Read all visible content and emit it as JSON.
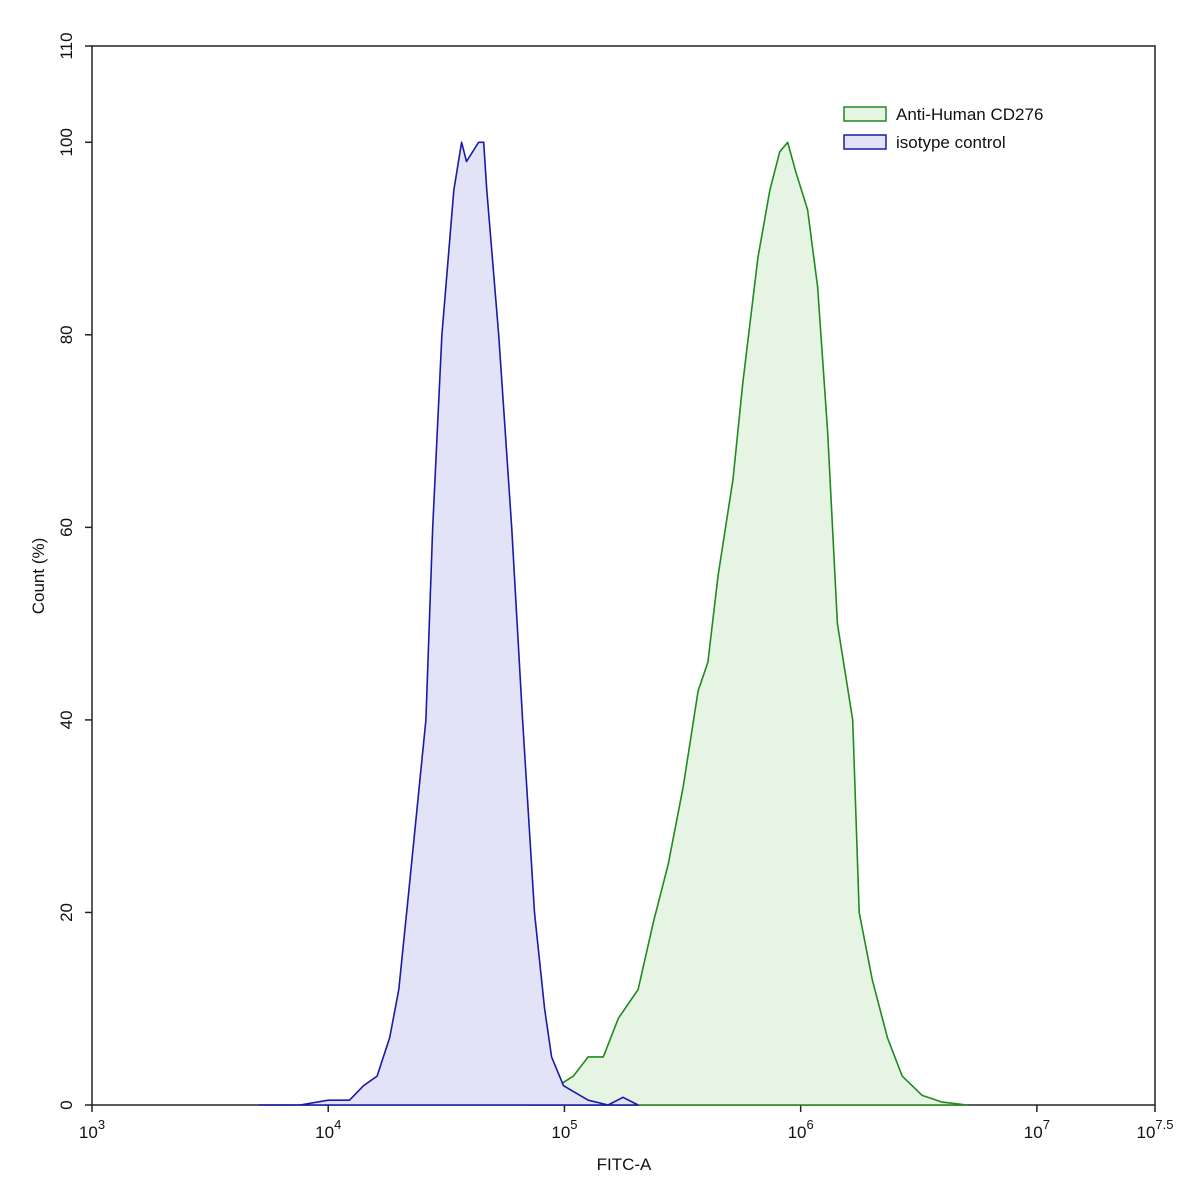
{
  "chart_data": {
    "type": "area",
    "log_x": true,
    "x_label": "FITC-A",
    "y_label": "Count  (%)",
    "xlim": [
      1000,
      31622776.6
    ],
    "xticks": [
      {
        "value": 1000,
        "label": "10",
        "exponent": "3"
      },
      {
        "value": 10000,
        "label": "10",
        "exponent": "4"
      },
      {
        "value": 100000,
        "label": "10",
        "exponent": "5"
      },
      {
        "value": 1000000,
        "label": "10",
        "exponent": "6"
      },
      {
        "value": 10000000,
        "label": "10",
        "exponent": "7"
      },
      {
        "value": 31622776.6,
        "label": "10",
        "exponent": "7.5"
      }
    ],
    "ylim": [
      0,
      110
    ],
    "yticks": [
      0,
      20,
      40,
      60,
      80,
      100,
      110
    ],
    "legend": "upper right",
    "series": [
      {
        "name": "Anti-Human CD276",
        "color": "#1f8a1f",
        "fill": "#e6f4e4",
        "x": [
          70500,
          81500,
          94400,
          109000,
          126000,
          146000,
          169000,
          205000,
          238000,
          275000,
          318000,
          368000,
          405000,
          447000,
          517000,
          569000,
          659000,
          740000,
          815000,
          881000,
          952000,
          1070000,
          1180000,
          1300000,
          1430000,
          1660000,
          1770000,
          2010000,
          2330000,
          2690000,
          3270000,
          3970000,
          5070000
        ],
        "values": [
          0,
          0.5,
          2,
          3,
          5,
          5,
          9,
          12,
          19,
          25,
          33,
          43,
          46,
          55,
          65,
          75,
          88,
          95,
          99,
          100,
          97,
          93,
          85,
          70,
          50,
          40,
          20,
          13,
          7,
          3,
          1,
          0.3,
          0
        ]
      },
      {
        "name": "isotype control",
        "color": "#1a1aa6",
        "fill": "#e3e3f8",
        "x": [
          5100,
          7600,
          10000,
          12300,
          14100,
          16100,
          18200,
          19900,
          21900,
          25900,
          27700,
          30300,
          34000,
          36700,
          38500,
          43300,
          45500,
          46900,
          52700,
          59800,
          66500,
          74700,
          82400,
          88200,
          99100,
          126000,
          153000,
          177000,
          205000
        ],
        "values": [
          0,
          0,
          0.5,
          0.5,
          2,
          3,
          7,
          12,
          22,
          40,
          60,
          80,
          95,
          100,
          98,
          100,
          100,
          95,
          80,
          60,
          40,
          20,
          10,
          5,
          2,
          0.5,
          0,
          0.8,
          0
        ]
      }
    ]
  }
}
